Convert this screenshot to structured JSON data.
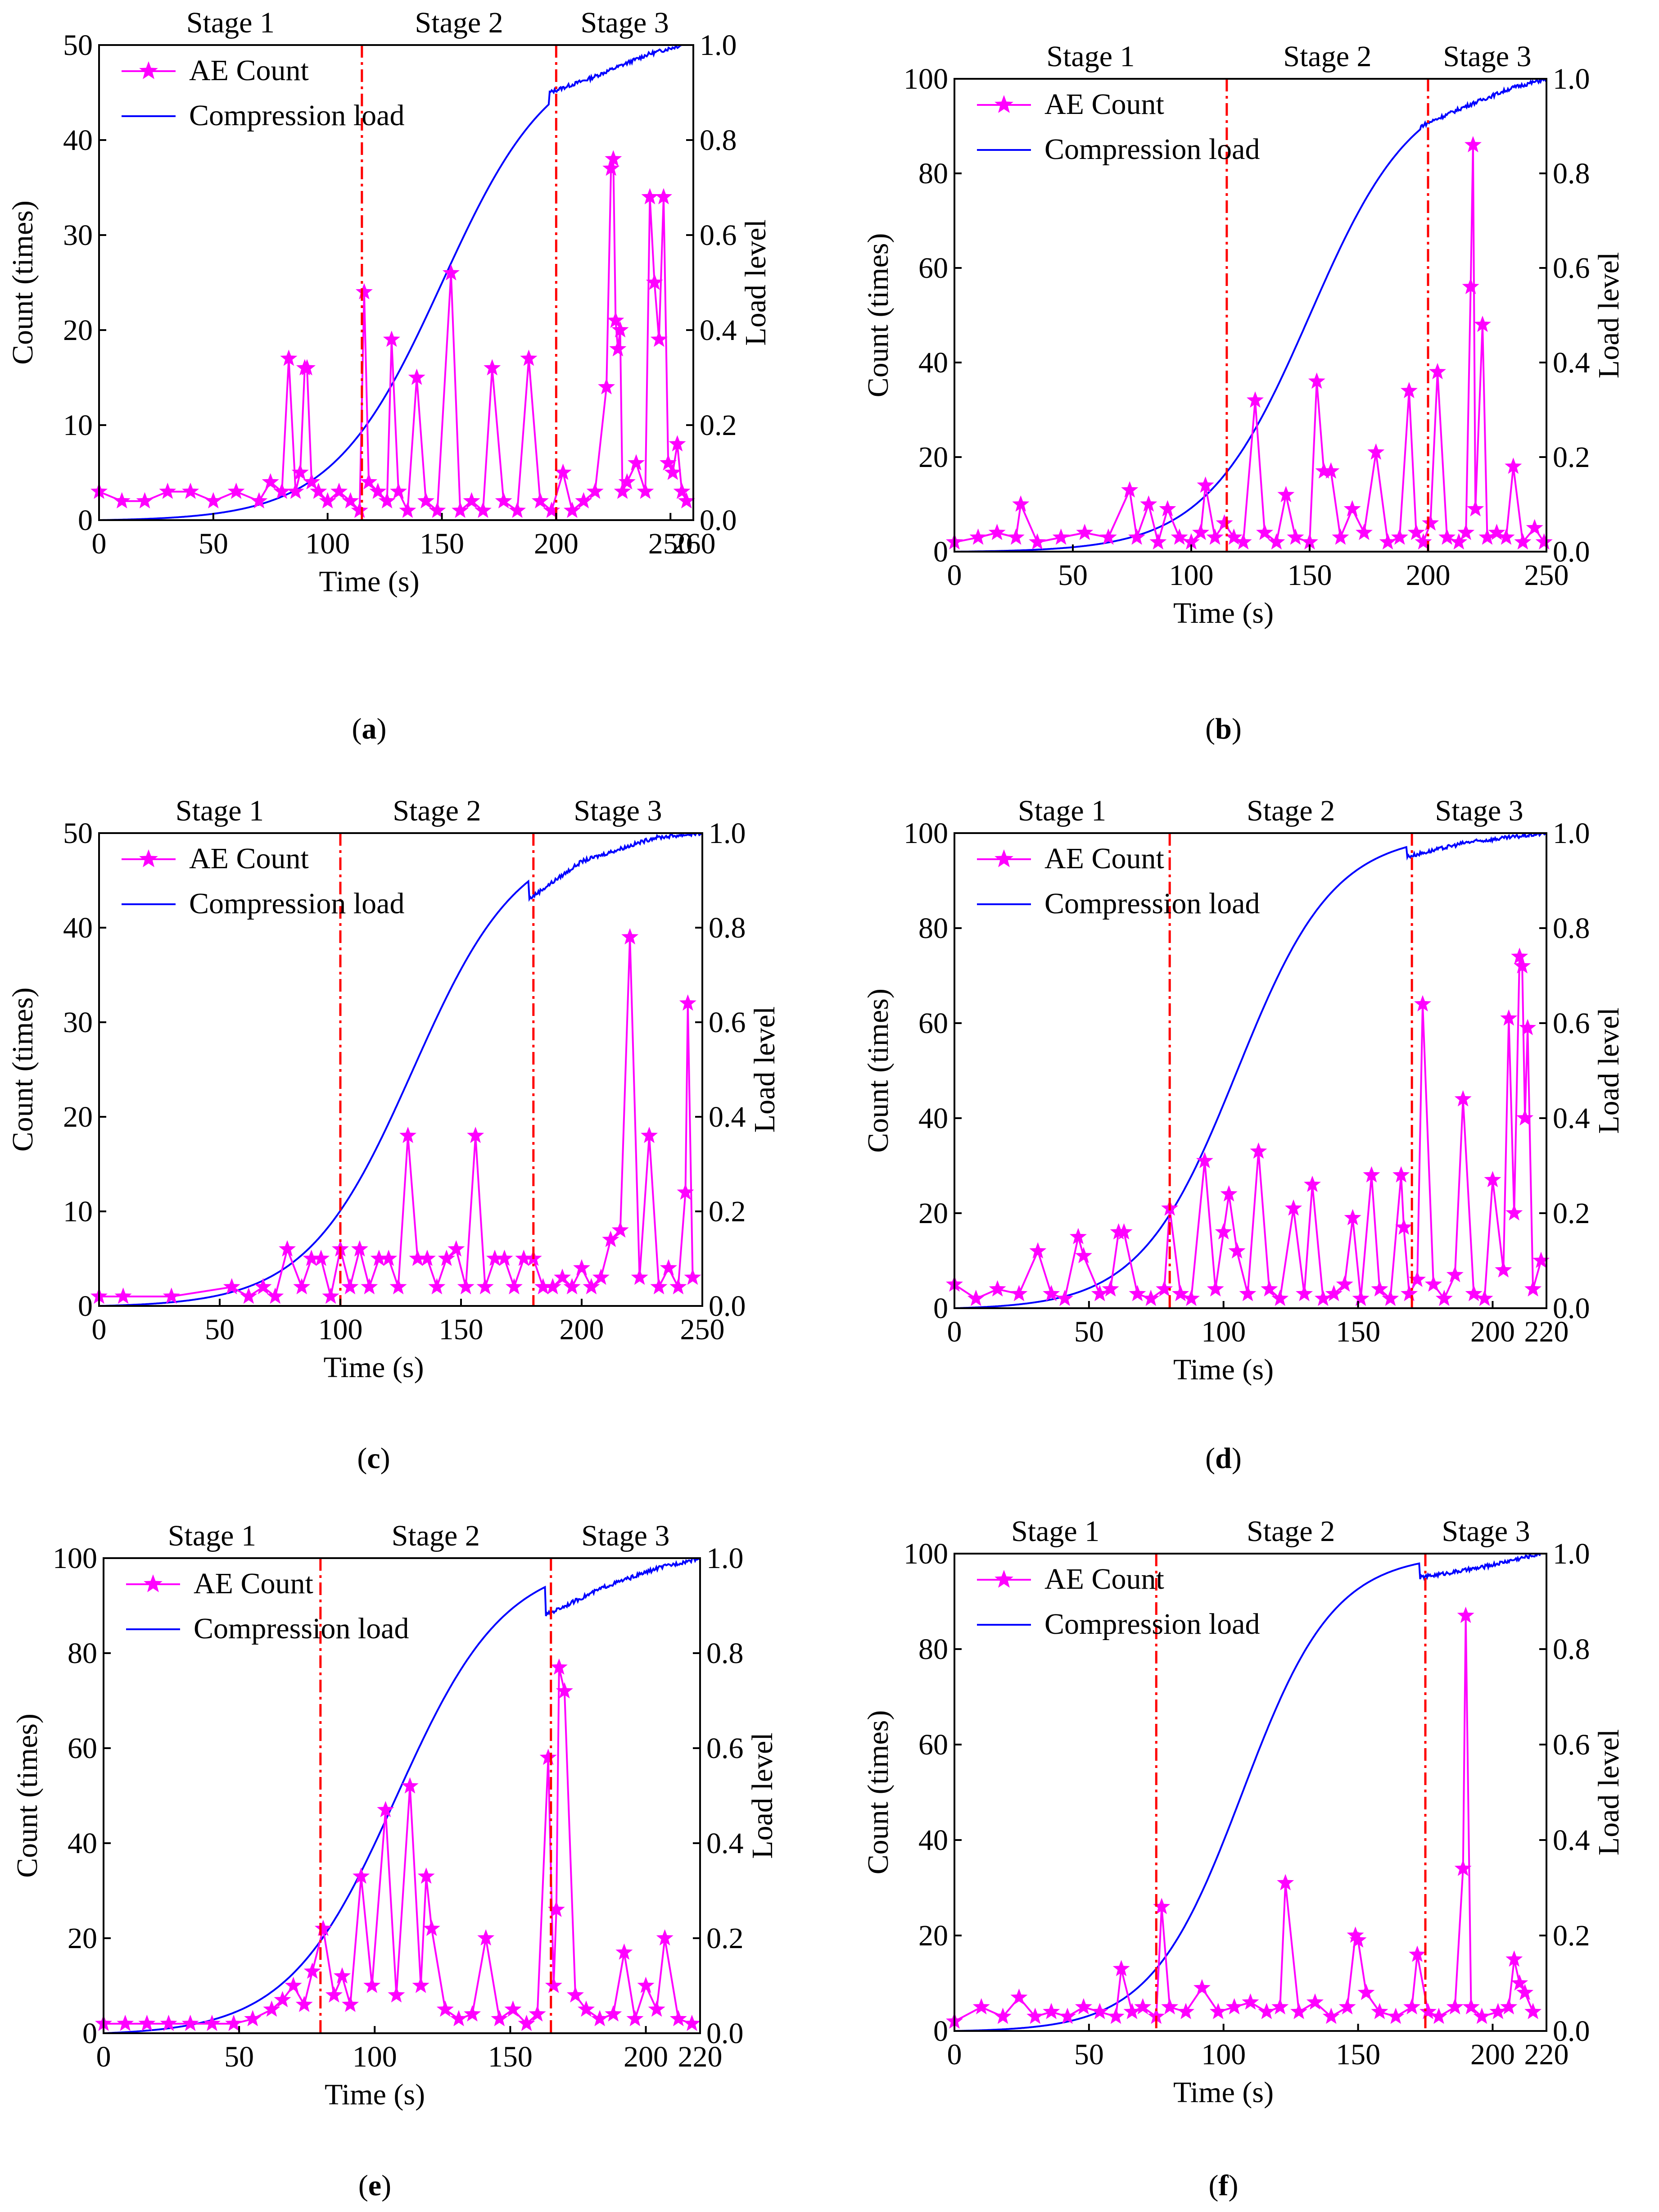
{
  "colors": {
    "ae": "#ff00ff",
    "load": "#0000ff",
    "boundary": "#ff0000",
    "axis": "#000000"
  },
  "chart_data": [
    {
      "panel_label": "(a)",
      "letter": "a",
      "type": "line",
      "xlabel": "Time (s)",
      "ylabel": "Count (times)",
      "y2label": "Load level",
      "xlim": [
        0,
        260
      ],
      "ylim": [
        0,
        50
      ],
      "y2lim": [
        0,
        1
      ],
      "xticks": [
        0,
        50,
        100,
        150,
        200,
        250,
        260
      ],
      "yticks": [
        0,
        10,
        20,
        30,
        40,
        50
      ],
      "y2ticks": [
        "0.0",
        "0.2",
        "0.4",
        "0.6",
        "0.8",
        "1.0"
      ],
      "stages": [
        "Stage 1",
        "Stage 2",
        "Stage 3"
      ],
      "boundaries": [
        115,
        200
      ],
      "legend": [
        "AE Count",
        "Compression load"
      ],
      "load_curve": {
        "mid": 150,
        "width": 24,
        "end": 255,
        "plateau": [
          [
            197,
            0.9
          ],
          [
            215,
            0.93
          ],
          [
            240,
            0.98
          ],
          [
            255,
            1.0
          ]
        ]
      },
      "series": [
        {
          "name": "AE Count",
          "x": [
            0,
            10,
            20,
            30,
            40,
            50,
            60,
            70,
            75,
            80,
            83,
            86,
            88,
            90,
            91,
            93,
            96,
            100,
            105,
            110,
            114,
            116,
            118,
            122,
            126,
            128,
            131,
            135,
            139,
            143,
            148,
            154,
            158,
            163,
            168,
            172,
            177,
            183,
            188,
            193,
            198,
            203,
            207,
            212,
            217,
            222,
            224,
            225,
            226,
            227,
            228,
            229,
            231,
            235,
            239,
            241,
            243,
            245,
            247,
            249,
            251,
            253,
            255,
            257
          ],
          "values": [
            3,
            2,
            2,
            3,
            3,
            2,
            3,
            2,
            4,
            3,
            17,
            3,
            5,
            16,
            16,
            4,
            3,
            2,
            3,
            2,
            1,
            24,
            4,
            3,
            2,
            19,
            3,
            1,
            15,
            2,
            1,
            26,
            1,
            2,
            1,
            16,
            2,
            1,
            17,
            2,
            1,
            5,
            1,
            2,
            3,
            14,
            37,
            38,
            21,
            18,
            20,
            3,
            4,
            6,
            3,
            34,
            25,
            19,
            34,
            6,
            5,
            8,
            3,
            2
          ]
        }
      ]
    },
    {
      "panel_label": "(b)",
      "letter": "b",
      "type": "line",
      "xlabel": "Time (s)",
      "ylabel": "Count (times)",
      "y2label": "Load level",
      "xlim": [
        0,
        250
      ],
      "ylim": [
        0,
        100
      ],
      "y2lim": [
        0,
        1
      ],
      "xticks": [
        0,
        50,
        100,
        150,
        200,
        250
      ],
      "yticks": [
        0,
        20,
        40,
        60,
        80,
        100
      ],
      "y2ticks": [
        "0.0",
        "0.2",
        "0.4",
        "0.6",
        "0.8",
        "1.0"
      ],
      "stages": [
        "Stage 1",
        "Stage 2",
        "Stage 3"
      ],
      "boundaries": [
        115,
        200
      ],
      "legend": [
        "AE Count",
        "Compression load"
      ],
      "load_curve": {
        "mid": 150,
        "width": 22,
        "end": 250,
        "plateau": [
          [
            197,
            0.9
          ],
          [
            215,
            0.94
          ],
          [
            235,
            0.98
          ],
          [
            250,
            1.0
          ]
        ]
      },
      "series": [
        {
          "name": "AE Count",
          "x": [
            0,
            10,
            18,
            26,
            28,
            35,
            45,
            55,
            65,
            74,
            77,
            82,
            86,
            90,
            95,
            100,
            104,
            106,
            110,
            114,
            118,
            122,
            127,
            131,
            136,
            140,
            144,
            150,
            153,
            156,
            159,
            163,
            168,
            173,
            178,
            183,
            188,
            192,
            195,
            198,
            201,
            204,
            208,
            213,
            216,
            218,
            219,
            220,
            223,
            225,
            229,
            233,
            236,
            240,
            245,
            249
          ],
          "values": [
            2,
            3,
            4,
            3,
            10,
            2,
            3,
            4,
            3,
            13,
            3,
            10,
            2,
            9,
            3,
            2,
            4,
            14,
            3,
            6,
            3,
            2,
            32,
            4,
            2,
            12,
            3,
            2,
            36,
            17,
            17,
            3,
            9,
            4,
            21,
            2,
            3,
            34,
            4,
            2,
            6,
            38,
            3,
            2,
            4,
            56,
            86,
            9,
            48,
            3,
            4,
            3,
            18,
            2,
            5,
            2
          ]
        }
      ]
    },
    {
      "panel_label": "(c)",
      "letter": "c",
      "type": "line",
      "xlabel": "Time (s)",
      "ylabel": "Count (times)",
      "y2label": "Load level",
      "xlim": [
        0,
        250
      ],
      "ylim": [
        0,
        50
      ],
      "y2lim": [
        0,
        1
      ],
      "xticks": [
        0,
        50,
        100,
        150,
        200,
        250
      ],
      "yticks": [
        0,
        10,
        20,
        30,
        40,
        50
      ],
      "y2ticks": [
        "0.0",
        "0.2",
        "0.4",
        "0.6",
        "0.8",
        "1.0"
      ],
      "stages": [
        "Stage 1",
        "Stage 2",
        "Stage 3"
      ],
      "boundaries": [
        100,
        180
      ],
      "legend": [
        "AE Count",
        "Compression load"
      ],
      "load_curve": {
        "mid": 130,
        "width": 22,
        "end": 250,
        "plateau": [
          [
            178,
            0.86
          ],
          [
            200,
            0.94
          ],
          [
            230,
            0.99
          ],
          [
            250,
            1.0
          ]
        ]
      },
      "series": [
        {
          "name": "AE Count",
          "x": [
            0,
            10,
            30,
            55,
            62,
            68,
            73,
            78,
            84,
            88,
            92,
            96,
            100,
            104,
            108,
            112,
            116,
            120,
            124,
            128,
            132,
            136,
            140,
            144,
            148,
            152,
            156,
            160,
            164,
            168,
            172,
            176,
            180,
            184,
            188,
            192,
            196,
            200,
            204,
            208,
            212,
            216,
            220,
            224,
            228,
            232,
            236,
            240,
            243,
            244,
            246
          ],
          "values": [
            1,
            1,
            1,
            2,
            1,
            2,
            1,
            6,
            2,
            5,
            5,
            1,
            6,
            2,
            6,
            2,
            5,
            5,
            2,
            18,
            5,
            5,
            2,
            5,
            6,
            2,
            18,
            2,
            5,
            5,
            2,
            5,
            5,
            2,
            2,
            3,
            2,
            4,
            2,
            3,
            7,
            8,
            39,
            3,
            18,
            2,
            4,
            2,
            12,
            32,
            3
          ]
        }
      ]
    },
    {
      "panel_label": "(d)",
      "letter": "d",
      "type": "line",
      "xlabel": "Time (s)",
      "ylabel": "Count (times)",
      "y2label": "Load level",
      "xlim": [
        0,
        220
      ],
      "ylim": [
        0,
        100
      ],
      "y2lim": [
        0,
        1
      ],
      "xticks": [
        0,
        50,
        100,
        150,
        200,
        220
      ],
      "yticks": [
        0,
        20,
        40,
        60,
        80,
        100
      ],
      "y2ticks": [
        "0.0",
        "0.2",
        "0.4",
        "0.6",
        "0.8",
        "1.0"
      ],
      "stages": [
        "Stage 1",
        "Stage 2",
        "Stage 3"
      ],
      "boundaries": [
        80,
        170
      ],
      "legend": [
        "AE Count",
        "Compression load"
      ],
      "load_curve": {
        "mid": 105,
        "width": 18,
        "end": 220,
        "plateau": [
          [
            168,
            0.95
          ],
          [
            190,
            0.98
          ],
          [
            205,
            0.99
          ],
          [
            220,
            1.0
          ]
        ]
      },
      "series": [
        {
          "name": "AE Count",
          "x": [
            0,
            8,
            16,
            24,
            31,
            36,
            41,
            46,
            48,
            54,
            58,
            61,
            63,
            68,
            73,
            78,
            80,
            84,
            88,
            93,
            97,
            100,
            102,
            105,
            109,
            113,
            117,
            121,
            126,
            130,
            133,
            137,
            141,
            145,
            148,
            151,
            155,
            158,
            162,
            166,
            167,
            169,
            172,
            174,
            178,
            182,
            186,
            189,
            193,
            197,
            200,
            204,
            206,
            208,
            210,
            211,
            212,
            213,
            215,
            218
          ],
          "values": [
            5,
            2,
            4,
            3,
            12,
            3,
            2,
            15,
            11,
            3,
            4,
            16,
            16,
            3,
            2,
            4,
            21,
            3,
            2,
            31,
            4,
            16,
            24,
            12,
            3,
            33,
            4,
            2,
            21,
            3,
            26,
            2,
            3,
            5,
            19,
            2,
            28,
            4,
            2,
            28,
            17,
            3,
            6,
            64,
            5,
            2,
            7,
            44,
            3,
            2,
            27,
            8,
            61,
            20,
            74,
            72,
            40,
            59,
            4,
            10
          ]
        }
      ]
    },
    {
      "panel_label": "(e)",
      "letter": "e",
      "type": "line",
      "xlabel": "Time (s)",
      "ylabel": "Count (times)",
      "y2label": "Load level",
      "xlim": [
        0,
        220
      ],
      "ylim": [
        0,
        100
      ],
      "y2lim": [
        0,
        1
      ],
      "xticks": [
        0,
        50,
        100,
        150,
        200,
        220
      ],
      "yticks": [
        0,
        20,
        40,
        60,
        80,
        100
      ],
      "y2ticks": [
        "0.0",
        "0.2",
        "0.4",
        "0.6",
        "0.8",
        "1.0"
      ],
      "stages": [
        "Stage 1",
        "Stage 2",
        "Stage 3"
      ],
      "boundaries": [
        80,
        165
      ],
      "legend": [
        "AE Count",
        "Compression load"
      ],
      "load_curve": {
        "mid": 108,
        "width": 20,
        "end": 220,
        "plateau": [
          [
            163,
            0.88
          ],
          [
            185,
            0.94
          ],
          [
            205,
            0.98
          ],
          [
            220,
            1.0
          ]
        ]
      },
      "series": [
        {
          "name": "AE Count",
          "x": [
            0,
            8,
            16,
            24,
            32,
            40,
            48,
            55,
            62,
            66,
            70,
            74,
            77,
            81,
            85,
            88,
            91,
            95,
            99,
            104,
            108,
            113,
            117,
            119,
            121,
            126,
            131,
            136,
            141,
            146,
            151,
            156,
            160,
            164,
            166,
            167,
            168,
            170,
            174,
            178,
            183,
            188,
            192,
            196,
            200,
            204,
            207,
            212,
            217
          ],
          "values": [
            2,
            2,
            2,
            2,
            2,
            2,
            2,
            3,
            5,
            7,
            10,
            6,
            13,
            22,
            8,
            12,
            6,
            33,
            10,
            47,
            8,
            52,
            10,
            33,
            22,
            5,
            3,
            4,
            20,
            3,
            5,
            2,
            4,
            58,
            10,
            26,
            77,
            72,
            8,
            5,
            3,
            4,
            17,
            3,
            10,
            5,
            20,
            3,
            2
          ]
        }
      ]
    },
    {
      "panel_label": "(f)",
      "letter": "f",
      "type": "line",
      "xlabel": "Time (s)",
      "ylabel": "Count (times)",
      "y2label": "Load level",
      "xlim": [
        0,
        220
      ],
      "ylim": [
        0,
        100
      ],
      "y2lim": [
        0,
        1
      ],
      "xticks": [
        0,
        50,
        100,
        150,
        200,
        220
      ],
      "yticks": [
        0,
        20,
        40,
        60,
        80,
        100
      ],
      "y2ticks": [
        "0.0",
        "0.2",
        "0.4",
        "0.6",
        "0.8",
        "1.0"
      ],
      "stages": [
        "Stage 1",
        "Stage 2",
        "Stage 3"
      ],
      "boundaries": [
        75,
        175
      ],
      "legend": [
        "AE Count",
        "Compression load"
      ],
      "load_curve": {
        "mid": 107,
        "width": 17,
        "end": 218,
        "plateau": [
          [
            173,
            0.95
          ],
          [
            195,
            0.97
          ],
          [
            210,
            0.99
          ],
          [
            218,
            1.0
          ]
        ]
      },
      "series": [
        {
          "name": "AE Count",
          "x": [
            0,
            10,
            18,
            24,
            30,
            36,
            42,
            48,
            54,
            60,
            62,
            66,
            70,
            75,
            77,
            80,
            86,
            92,
            98,
            104,
            110,
            116,
            121,
            123,
            128,
            134,
            140,
            146,
            149,
            150,
            153,
            158,
            164,
            170,
            172,
            176,
            180,
            186,
            189,
            190,
            192,
            196,
            202,
            206,
            208,
            210,
            212,
            215
          ],
          "values": [
            2,
            5,
            3,
            7,
            3,
            4,
            3,
            5,
            4,
            3,
            13,
            4,
            5,
            3,
            26,
            5,
            4,
            9,
            4,
            5,
            6,
            4,
            5,
            31,
            4,
            6,
            3,
            5,
            20,
            19,
            8,
            4,
            3,
            5,
            16,
            4,
            3,
            5,
            34,
            87,
            5,
            3,
            4,
            5,
            15,
            10,
            8,
            4
          ]
        }
      ]
    }
  ]
}
